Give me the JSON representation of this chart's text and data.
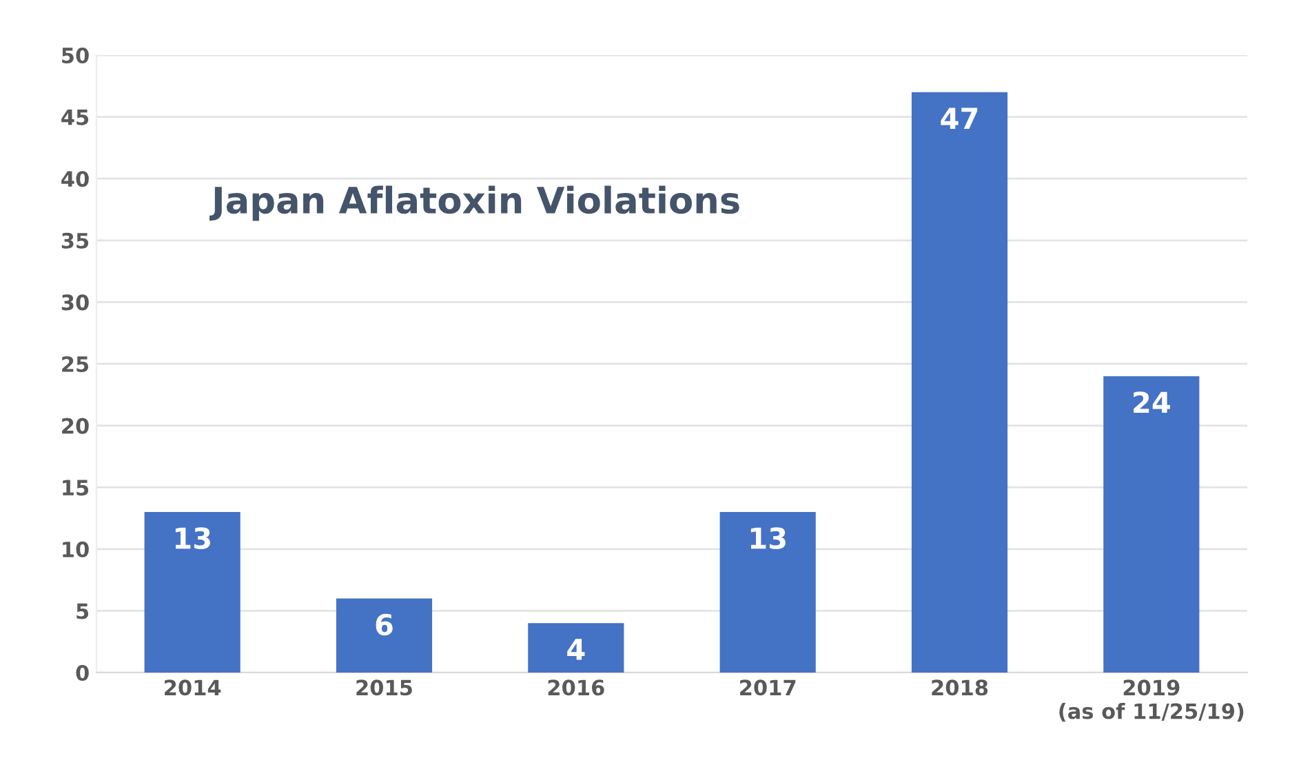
{
  "chart_data": {
    "type": "bar",
    "title": "Japan Aflatoxin Violations",
    "categories": [
      "2014",
      "2015",
      "2016",
      "2017",
      "2018",
      "2019\n(as of 11/25/19)"
    ],
    "values": [
      13,
      6,
      4,
      13,
      47,
      24
    ],
    "color": "#4472c4",
    "ylim": [
      0,
      50
    ],
    "yticks": [
      0,
      5,
      10,
      15,
      20,
      25,
      30,
      35,
      40,
      45,
      50
    ],
    "grid": "y",
    "data_labels": true
  }
}
